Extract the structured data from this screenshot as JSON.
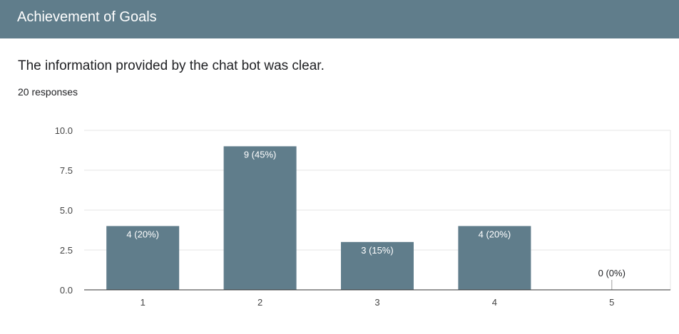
{
  "header": {
    "title": "Achievement of Goals"
  },
  "question": {
    "text": "The information provided by the chat bot was clear.",
    "responses": "20 responses"
  },
  "colors": {
    "header_bg": "#607d8b",
    "bar": "#607d8b",
    "grid": "#e6e6e6",
    "axis": "#333333"
  },
  "chart_data": {
    "type": "bar",
    "categories": [
      "1",
      "2",
      "3",
      "4",
      "5"
    ],
    "values": [
      4,
      9,
      3,
      4,
      0
    ],
    "data_labels": [
      "4 (20%)",
      "9 (45%)",
      "3 (15%)",
      "4 (20%)",
      "0 (0%)"
    ],
    "y_ticks": [
      "0.0",
      "2.5",
      "5.0",
      "7.5",
      "10.0"
    ],
    "ylim": [
      0,
      10
    ],
    "grid": true,
    "legend": "none"
  }
}
